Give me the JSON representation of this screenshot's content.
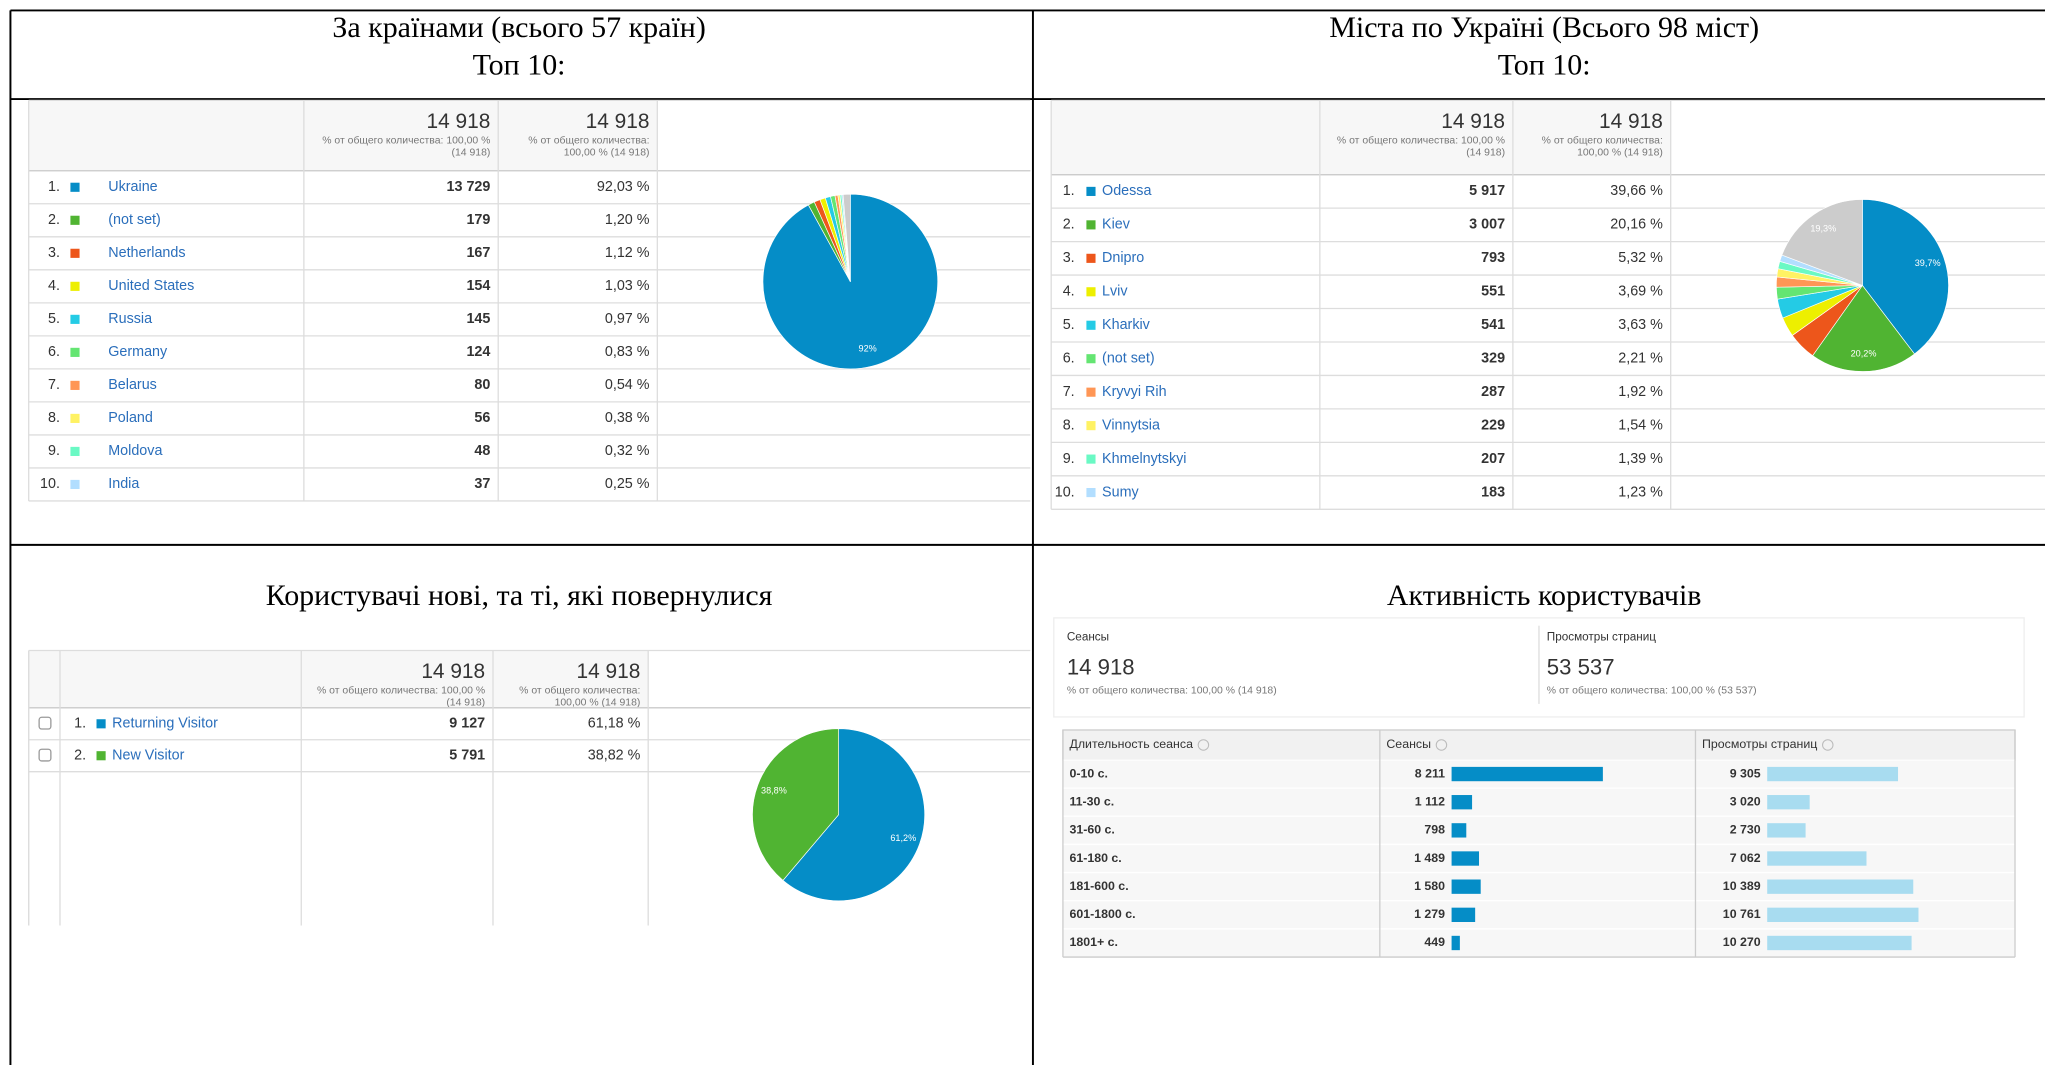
{
  "countries": {
    "title": "За країнами (всього 57 країн)",
    "subtitle": "Топ 10:",
    "columns": [
      {
        "total": "14 918",
        "note": [
          "% от общего количества: 100,00 %",
          "(14 918)"
        ]
      },
      {
        "total": "14 918",
        "note": [
          "% от общего количества:",
          "100,00 % (14 918)"
        ]
      }
    ],
    "rows": [
      {
        "rank": "1.",
        "name": "Ukraine",
        "sessions": "13 729",
        "share": "92,03 %"
      },
      {
        "rank": "2.",
        "name": "(not set)",
        "sessions": "179",
        "share": "1,20 %"
      },
      {
        "rank": "3.",
        "name": "Netherlands",
        "sessions": "167",
        "share": "1,12 %"
      },
      {
        "rank": "4.",
        "name": "United States",
        "sessions": "154",
        "share": "1,03 %"
      },
      {
        "rank": "5.",
        "name": "Russia",
        "sessions": "145",
        "share": "0,97 %"
      },
      {
        "rank": "6.",
        "name": "Germany",
        "sessions": "124",
        "share": "0,83 %"
      },
      {
        "rank": "7.",
        "name": "Belarus",
        "sessions": "80",
        "share": "0,54 %"
      },
      {
        "rank": "8.",
        "name": "Poland",
        "sessions": "56",
        "share": "0,38 %"
      },
      {
        "rank": "9.",
        "name": "Moldova",
        "sessions": "48",
        "share": "0,32 %"
      },
      {
        "rank": "10.",
        "name": "India",
        "sessions": "37",
        "share": "0,25 %"
      }
    ],
    "pie": {
      "type": "pie",
      "values": [
        92.03,
        1.2,
        1.12,
        1.03,
        0.97,
        0.83,
        0.54,
        0.38,
        0.32,
        0.25,
        1.33
      ],
      "colors": [
        "#058dc7",
        "#50b432",
        "#ed561b",
        "#edef00",
        "#24cbe5",
        "#64e572",
        "#ff9655",
        "#fff263",
        "#6af9c4",
        "#b2deff",
        "#cccccc"
      ],
      "value_labels": [
        "92%",
        null,
        null,
        null,
        null,
        null,
        null,
        null,
        null,
        null,
        null
      ]
    }
  },
  "cities": {
    "title": "Міста по Україні (Всього 98 міст)",
    "subtitle": "Топ 10:",
    "columns": [
      {
        "total": "14 918",
        "note": [
          "% от общего количества: 100,00 %",
          "(14 918)"
        ]
      },
      {
        "total": "14 918",
        "note": [
          "% от общего количества:",
          "100,00 % (14 918)"
        ]
      }
    ],
    "rows": [
      {
        "rank": "1.",
        "name": "Odessa",
        "sessions": "5 917",
        "share": "39,66 %"
      },
      {
        "rank": "2.",
        "name": "Kiev",
        "sessions": "3 007",
        "share": "20,16 %"
      },
      {
        "rank": "3.",
        "name": "Dnipro",
        "sessions": "793",
        "share": "5,32 %"
      },
      {
        "rank": "4.",
        "name": "Lviv",
        "sessions": "551",
        "share": "3,69 %"
      },
      {
        "rank": "5.",
        "name": "Kharkiv",
        "sessions": "541",
        "share": "3,63 %"
      },
      {
        "rank": "6.",
        "name": "(not set)",
        "sessions": "329",
        "share": "2,21 %"
      },
      {
        "rank": "7.",
        "name": "Kryvyi Rih",
        "sessions": "287",
        "share": "1,92 %"
      },
      {
        "rank": "8.",
        "name": "Vinnytsia",
        "sessions": "229",
        "share": "1,54 %"
      },
      {
        "rank": "9.",
        "name": "Khmelnytskyi",
        "sessions": "207",
        "share": "1,39 %"
      },
      {
        "rank": "10.",
        "name": "Sumy",
        "sessions": "183",
        "share": "1,23 %"
      }
    ],
    "pie": {
      "type": "pie",
      "values": [
        39.66,
        20.16,
        5.32,
        3.69,
        3.63,
        2.21,
        1.92,
        1.54,
        1.39,
        1.23,
        19.25
      ],
      "colors": [
        "#058dc7",
        "#50b432",
        "#ed561b",
        "#edef00",
        "#24cbe5",
        "#64e572",
        "#ff9655",
        "#fff263",
        "#6af9c4",
        "#b2deff",
        "#cccccc"
      ],
      "value_labels": [
        "39,7%",
        "20,2%",
        null,
        null,
        null,
        null,
        null,
        null,
        null,
        null,
        "19,3%"
      ]
    }
  },
  "users": {
    "title": "Користувачі нові, та ті, які повернулися",
    "columns": [
      {
        "total": "14 918",
        "note": [
          "% от общего количества: 100,00 %",
          "(14 918)"
        ]
      },
      {
        "total": "14 918",
        "note": [
          "% от общего количества:",
          "100,00 % (14 918)"
        ]
      }
    ],
    "rows": [
      {
        "rank": "1.",
        "name": "Returning Visitor",
        "sessions": "9 127",
        "share": "61,18 %"
      },
      {
        "rank": "2.",
        "name": "New Visitor",
        "sessions": "5 791",
        "share": "38,82 %"
      }
    ],
    "pie": {
      "type": "pie",
      "values": [
        61.18,
        38.82
      ],
      "colors": [
        "#058dc7",
        "#50b432"
      ],
      "value_labels": [
        "61,2%",
        "38,8%"
      ]
    }
  },
  "activity": {
    "title": "Активність користувачів",
    "metrics": [
      {
        "label": "Сеансы",
        "value": "14 918",
        "note": "% от общего количества: 100,00 % (14 918)"
      },
      {
        "label": "Просмотры страниц",
        "value": "53 537",
        "note": "% от общего количества: 100,00 % (53 537)"
      }
    ],
    "table": {
      "type": "bar",
      "headers": [
        "Длительность сеанса",
        "Сеансы",
        "Просмотры страниц"
      ],
      "categories": [
        "0-10 с.",
        "11-30 с.",
        "31-60 с.",
        "61-180 с.",
        "181-600 с.",
        "601-1800 с.",
        "1801+ с."
      ],
      "series": [
        {
          "color": "#058dc7",
          "values": [
            8211,
            1112,
            798,
            1489,
            1580,
            1279,
            449
          ],
          "value_labels": [
            "8 211",
            "1 112",
            "798",
            "1 489",
            "1 580",
            "1 279",
            "449"
          ]
        },
        {
          "color": "#a8dcf0",
          "values": [
            9305,
            3020,
            2730,
            7062,
            10389,
            10761,
            10270
          ],
          "value_labels": [
            "9 305",
            "3 020",
            "2 730",
            "7 062",
            "10 389",
            "10 761",
            "10 270"
          ]
        }
      ]
    }
  }
}
